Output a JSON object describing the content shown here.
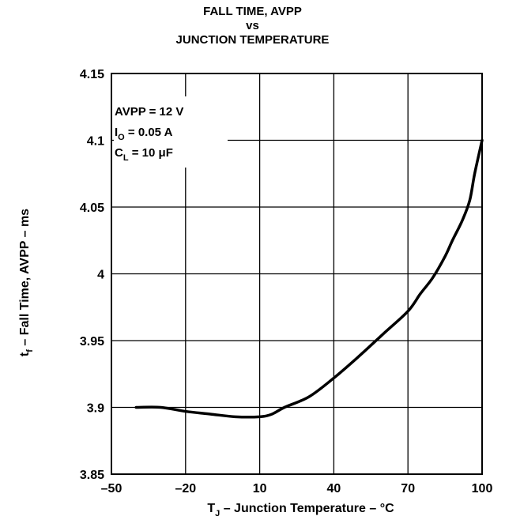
{
  "chart_data": {
    "type": "line",
    "title": [
      "FALL TIME, AVPP",
      "vs",
      "JUNCTION TEMPERATURE"
    ],
    "xlabel": {
      "main": "T",
      "sub": "J",
      "rest": " – Junction Temperature – °C"
    },
    "ylabel": {
      "main": "t",
      "sub": "f",
      "rest": " – Fall Time, AVPP – ms"
    },
    "xlim": [
      -50,
      100
    ],
    "ylim": [
      3.85,
      4.15
    ],
    "x_ticks": [
      "–50",
      "–20",
      "10",
      "40",
      "70",
      "100"
    ],
    "x_tick_values": [
      -50,
      -20,
      10,
      40,
      70,
      100
    ],
    "y_ticks": [
      "4.15",
      "4.1",
      "4.05",
      "4",
      "3.95",
      "3.9",
      "3.85"
    ],
    "y_tick_values": [
      4.15,
      4.1,
      4.05,
      4.0,
      3.95,
      3.9,
      3.85
    ],
    "grid": true,
    "annotations": [
      {
        "main": "AVPP = 12 V",
        "sub": "",
        "rest": ""
      },
      {
        "main": "I",
        "sub": "O",
        "rest": " = 0.05 A"
      },
      {
        "main": "C",
        "sub": "L",
        "rest": " = 10 μF"
      }
    ],
    "series": [
      {
        "x": [
          -40,
          -30,
          -20,
          -10,
          0,
          10,
          15,
          20,
          30,
          40,
          50,
          60,
          70,
          75,
          80,
          85,
          88,
          92,
          95,
          97,
          100
        ],
        "y": [
          3.9,
          3.9,
          3.897,
          3.895,
          3.893,
          3.893,
          3.895,
          3.9,
          3.908,
          3.922,
          3.938,
          3.955,
          3.972,
          3.985,
          3.997,
          4.013,
          4.025,
          4.04,
          4.055,
          4.075,
          4.1
        ]
      }
    ]
  }
}
